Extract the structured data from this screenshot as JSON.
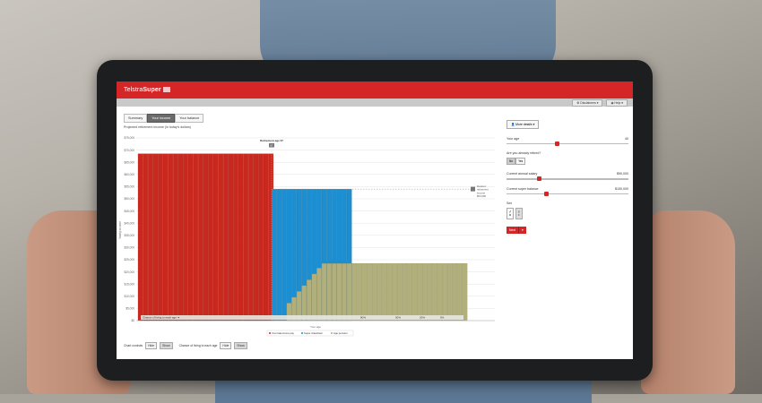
{
  "app": {
    "brand_prefix": "Telstra",
    "brand_suffix": "Super"
  },
  "toolbar": {
    "disclaimers": "Disclaimers",
    "help": "Help"
  },
  "tabs": [
    {
      "label": "Summary",
      "active": false
    },
    {
      "label": "Your income",
      "active": true
    },
    {
      "label": "Your balance",
      "active": false
    }
  ],
  "chart_title": "Projected retirement income (in today's dollars)",
  "chart_data": {
    "type": "bar",
    "ylabel": "Yearly income",
    "xlabel": "Your age",
    "y_ticks": [
      "$75,000",
      "$70,000",
      "$65,000",
      "$60,000",
      "$55,000",
      "$50,000",
      "$45,000",
      "$40,000",
      "$35,000",
      "$30,000",
      "$25,000",
      "$20,000",
      "$15,000",
      "$10,000",
      "$5,000",
      "$0"
    ],
    "x_ticks": [
      "",
      "",
      "",
      "",
      "",
      "",
      "",
      "",
      "",
      "",
      "",
      "",
      "",
      "",
      ""
    ],
    "ylim": [
      0,
      75000
    ],
    "retirement_marker": "Retirement age 67",
    "retirement_marker_value": "67",
    "desired_income_label": [
      "Desired",
      "retirement",
      "income",
      "$54,000"
    ],
    "desired_income": 54000,
    "series": [
      {
        "name": "Your take-home pay",
        "color": "#c8281e",
        "values": [
          68500
        ]
      },
      {
        "name": "Super drawdown",
        "color": "#1b8fd1",
        "values": [
          54000
        ]
      },
      {
        "name": "Age pension",
        "color": "#b1af7c",
        "values": [
          23500
        ]
      }
    ],
    "chance_label": "Chance of living to each age ➔",
    "chance_values": [
      "80%",
      "50%",
      "20%",
      "5%"
    ]
  },
  "legend": [
    "Your take-home pay",
    "Super drawdown",
    "Age pension"
  ],
  "bottom_controls": {
    "chart_controls": "Chart controls",
    "chart_hide": "Hide",
    "chart_show": "Show",
    "chance_label": "Chance of living to each age",
    "chance_hide": "Hide",
    "chance_show": "Show"
  },
  "panel": {
    "about_btn": "More details",
    "age_label": "Your age",
    "age_value": "40",
    "retired_label": "Are you already retired?",
    "retired_no": "No",
    "retired_yes": "Yes",
    "salary_label": "Current annual salary",
    "salary_value": "$90,000",
    "balance_label": "Current super balance",
    "balance_value": "$150,000",
    "sex_label": "Sex",
    "sex_m": "M",
    "sex_f": "F",
    "next_label": "Next"
  },
  "colors": {
    "brand": "#d42527",
    "pay": "#c8281e",
    "super": "#1b8fd1",
    "pension": "#b1af7c"
  }
}
